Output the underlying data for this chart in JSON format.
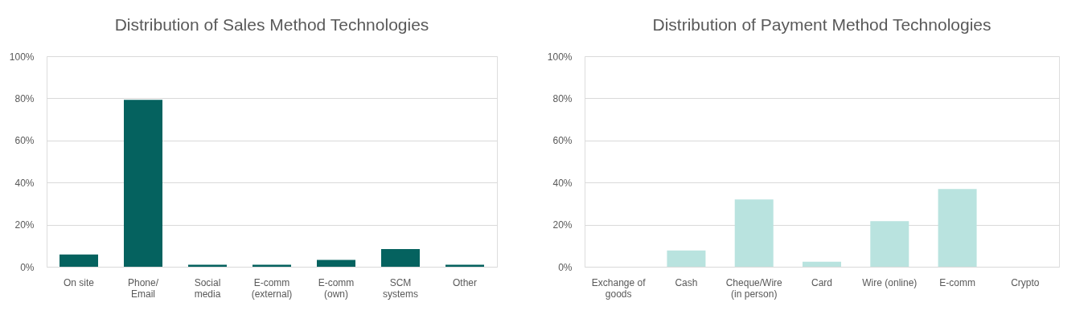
{
  "chart_data": [
    {
      "type": "bar",
      "title": "Distribution of Sales Method Technologies",
      "categories": [
        "On site",
        "Phone/\nEmail",
        "Social\nmedia",
        "E-comm\n(external)",
        "E-comm\n(own)",
        "SCM\nsystems",
        "Other"
      ],
      "values": [
        5.8,
        79.3,
        1,
        1,
        3.2,
        8.4,
        1
      ],
      "color": "#05625f",
      "ylim": [
        0,
        100
      ],
      "yticks": [
        {
          "value": 0,
          "label": "0%"
        },
        {
          "value": 20,
          "label": "20%"
        },
        {
          "value": 40,
          "label": "40%"
        },
        {
          "value": 60,
          "label": "60%"
        },
        {
          "value": 80,
          "label": "80%"
        },
        {
          "value": 100,
          "label": "100%"
        }
      ],
      "grid": "y"
    },
    {
      "type": "bar",
      "title": "Distribution of Payment Method Technologies",
      "categories": [
        "Exchange of\ngoods",
        "Cash",
        "Cheque/Wire\n(in person)",
        "Card",
        "Wire (online)",
        "E-comm",
        "Crypto"
      ],
      "values": [
        0,
        7.7,
        32,
        2.4,
        21.7,
        36.9,
        0
      ],
      "color": "#b9e3df",
      "ylim": [
        0,
        100
      ],
      "yticks": [
        {
          "value": 0,
          "label": "0%"
        },
        {
          "value": 20,
          "label": "20%"
        },
        {
          "value": 40,
          "label": "40%"
        },
        {
          "value": 60,
          "label": "60%"
        },
        {
          "value": 80,
          "label": "80%"
        },
        {
          "value": 100,
          "label": "100%"
        }
      ],
      "grid": "y"
    }
  ]
}
